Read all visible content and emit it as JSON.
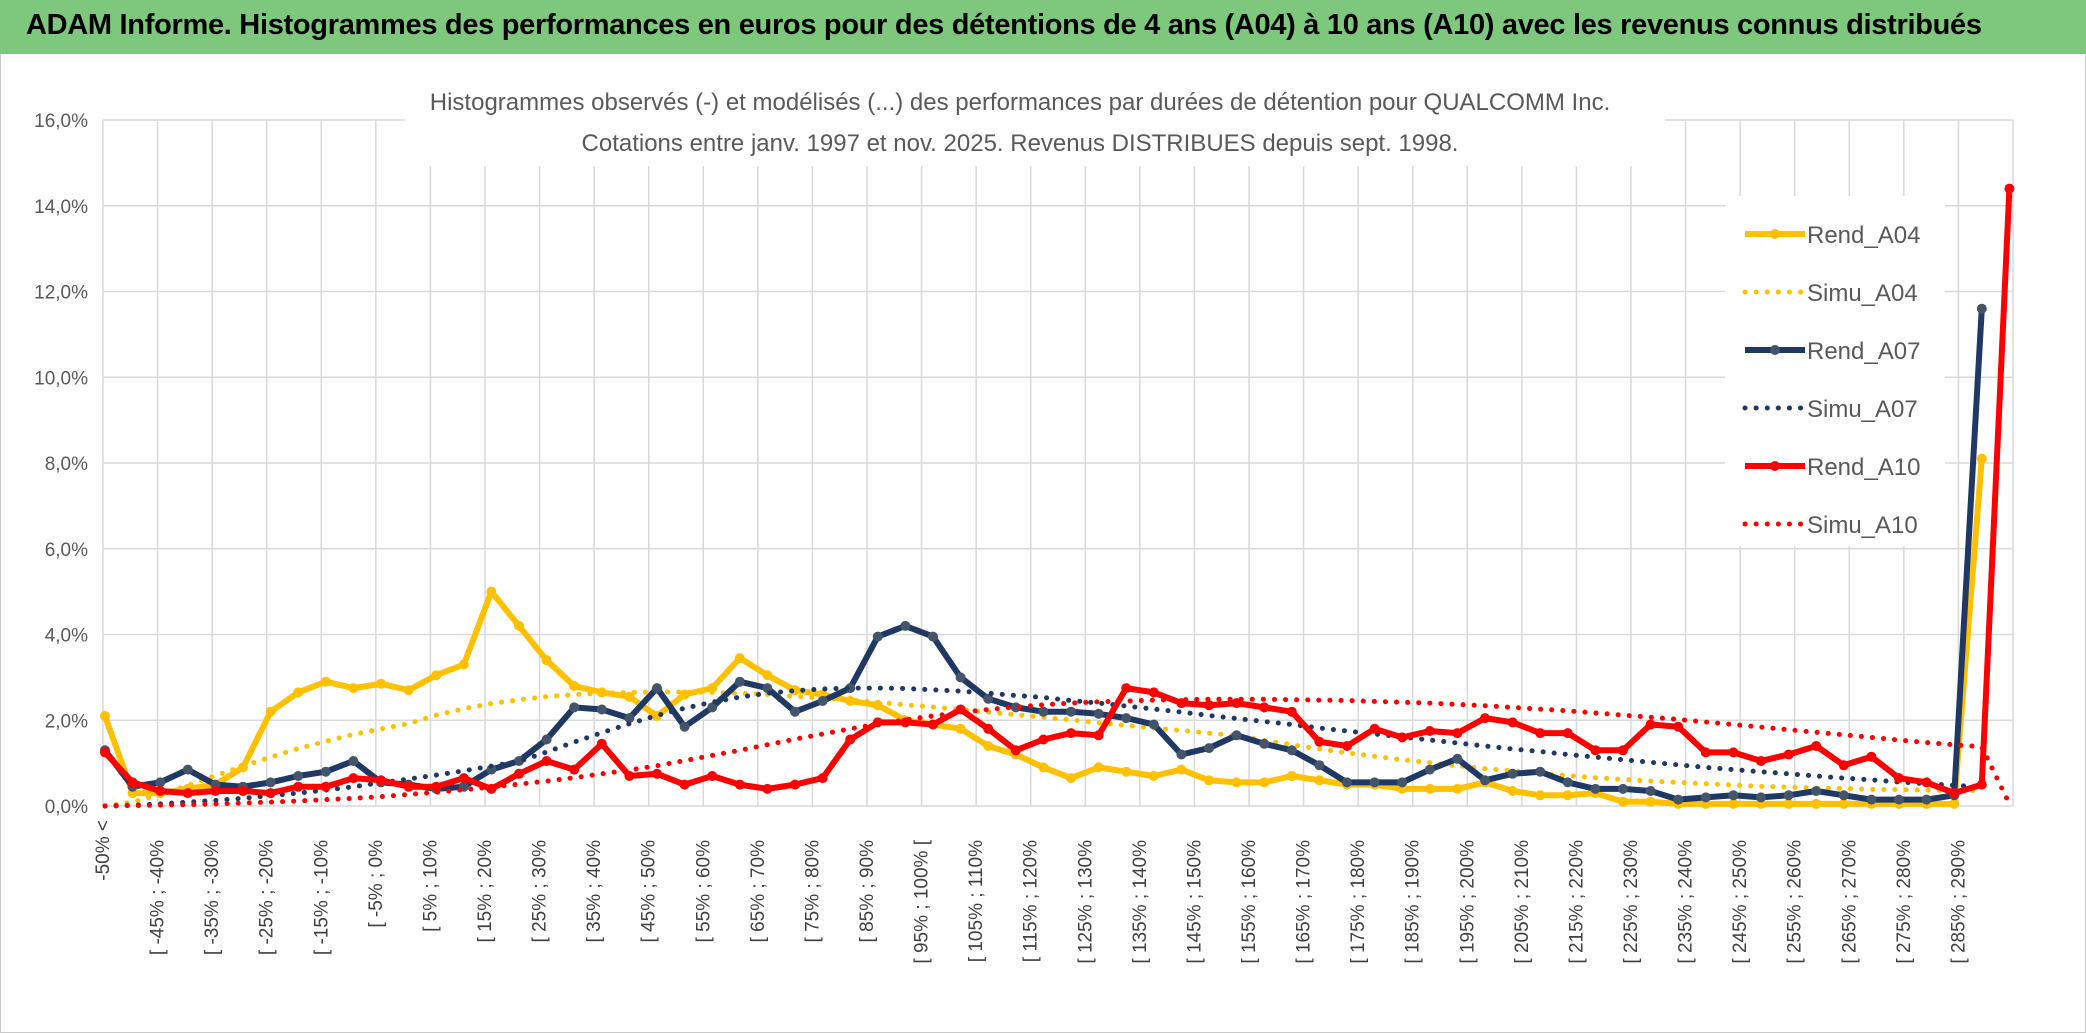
{
  "banner": {
    "title": "ADAM Informe. Histogrammes des performances en euros pour des détentions de 4 ans (A04) à 10 ans (A10) avec les revenus connus distribués"
  },
  "chart_data": {
    "type": "line",
    "title": "Histogrammes observés (-) et modélisés (...) des performances par durées de détention pour QUALCOMM Inc.",
    "subtitle": "Cotations entre janv. 1997 et nov. 2025. Revenus DISTRIBUES depuis sept. 1998.",
    "ylim": [
      0,
      16
    ],
    "yticks": [
      "0,0%",
      "2,0%",
      "4,0%",
      "6,0%",
      "8,0%",
      "10,0%",
      "12,0%",
      "14,0%",
      "16,0%"
    ],
    "grid": true,
    "legend_position": "right",
    "x_labels": [
      "-50% <",
      "[ -45% ; -40%",
      "[ -35% ; -30%",
      "[ -25% ; -20%",
      "[ -15% ; -10%",
      "[ -5% ; 0%",
      "[ 5% ; 10%",
      "[ 15% ; 20%",
      "[ 25% ; 30%",
      "[ 35% ; 40%",
      "[ 45% ; 50%",
      "[ 55% ; 60%",
      "[ 65% ; 70%",
      "[ 75% ; 80%",
      "[ 85% ; 90%",
      "[ 95% ; 100% [",
      "[ 105% ; 110%",
      "[ 115% ; 120%",
      "[ 125% ; 130%",
      "[ 135% ; 140%",
      "[ 145% ; 150%",
      "[ 155% ; 160%",
      "[ 165% ; 170%",
      "[ 175% ; 180%",
      "[ 185% ; 190%",
      "[ 195% ; 200%",
      "[ 205% ; 210%",
      "[ 215% ; 220%",
      "[ 225% ; 230%",
      "[ 235% ; 240%",
      "[ 245% ; 250%",
      "[ 255% ; 260%",
      "[ 265% ; 270%",
      "[ 275% ; 280%",
      "[ 285% ; 290%"
    ],
    "series": [
      {
        "name": "Rend_A04",
        "style": "solid",
        "color": "#ffc000",
        "marker_color": "#ffc000",
        "values": [
          2.1,
          0.3,
          0.3,
          0.4,
          0.5,
          0.9,
          2.2,
          2.65,
          2.9,
          2.75,
          2.85,
          2.7,
          3.05,
          3.3,
          5.0,
          4.2,
          3.4,
          2.8,
          2.65,
          2.55,
          2.1,
          2.6,
          2.75,
          3.45,
          3.05,
          2.7,
          2.6,
          2.45,
          2.35,
          2.0,
          1.9,
          1.8,
          1.4,
          1.2,
          0.9,
          0.65,
          0.9,
          0.8,
          0.7,
          0.85,
          0.6,
          0.55,
          0.55,
          0.7,
          0.6,
          0.5,
          0.5,
          0.4,
          0.4,
          0.4,
          0.55,
          0.35,
          0.25,
          0.25,
          0.3,
          0.1,
          0.1,
          0.05,
          0.05,
          0.05,
          0.05,
          0.05,
          0.05,
          0.05,
          0.05,
          0.05,
          0.05,
          0.05,
          8.1
        ]
      },
      {
        "name": "Simu_A04",
        "style": "dotted",
        "color": "#ffc000",
        "values": [
          0.0,
          0.09,
          0.27,
          0.48,
          0.71,
          0.93,
          1.14,
          1.34,
          1.51,
          1.67,
          1.8,
          1.92,
          2.12,
          2.27,
          2.39,
          2.48,
          2.55,
          2.6,
          2.63,
          2.65,
          2.66,
          2.66,
          2.65,
          2.63,
          2.6,
          2.56,
          2.52,
          2.47,
          2.42,
          2.36,
          2.31,
          2.25,
          2.19,
          2.13,
          2.07,
          2.01,
          1.94,
          1.88,
          1.82,
          1.76,
          1.7,
          1.64,
          1.53,
          1.43,
          1.33,
          1.24,
          1.16,
          1.08,
          1.01,
          0.94,
          0.87,
          0.82,
          0.76,
          0.71,
          0.66,
          0.62,
          0.58,
          0.55,
          0.52,
          0.49,
          0.46,
          0.44,
          0.42,
          0.41,
          0.39,
          0.38,
          0.37,
          0.36,
          0.36
        ]
      },
      {
        "name": "Rend_A07",
        "style": "solid",
        "color": "#1f3864",
        "marker_color": "#44546a",
        "values": [
          1.3,
          0.45,
          0.55,
          0.85,
          0.5,
          0.45,
          0.55,
          0.7,
          0.8,
          1.05,
          0.55,
          0.5,
          0.4,
          0.45,
          0.85,
          1.05,
          1.55,
          2.3,
          2.25,
          2.05,
          2.75,
          1.85,
          2.3,
          2.9,
          2.75,
          2.2,
          2.45,
          2.75,
          3.95,
          4.2,
          3.95,
          3.0,
          2.5,
          2.3,
          2.2,
          2.2,
          2.15,
          2.05,
          1.9,
          1.2,
          1.35,
          1.65,
          1.45,
          1.3,
          0.95,
          0.55,
          0.55,
          0.55,
          0.85,
          1.1,
          0.6,
          0.75,
          0.8,
          0.55,
          0.4,
          0.4,
          0.35,
          0.15,
          0.2,
          0.25,
          0.2,
          0.25,
          0.35,
          0.25,
          0.15,
          0.15,
          0.15,
          0.25,
          11.6
        ]
      },
      {
        "name": "Simu_A07",
        "style": "dotted",
        "color": "#1f3864",
        "values": [
          0.0,
          0.02,
          0.05,
          0.09,
          0.13,
          0.18,
          0.24,
          0.3,
          0.37,
          0.45,
          0.54,
          0.63,
          0.72,
          0.82,
          0.93,
          1.04,
          1.26,
          1.49,
          1.71,
          1.92,
          2.11,
          2.28,
          2.42,
          2.54,
          2.63,
          2.69,
          2.73,
          2.75,
          2.75,
          2.74,
          2.71,
          2.68,
          2.63,
          2.58,
          2.53,
          2.46,
          2.4,
          2.33,
          2.26,
          2.19,
          2.11,
          2.04,
          1.97,
          1.9,
          1.82,
          1.75,
          1.68,
          1.61,
          1.54,
          1.47,
          1.4,
          1.33,
          1.27,
          1.2,
          1.14,
          1.08,
          1.02,
          0.96,
          0.9,
          0.85,
          0.8,
          0.75,
          0.7,
          0.65,
          0.61,
          0.56,
          0.52,
          0.48,
          0.45
        ]
      },
      {
        "name": "Rend_A10",
        "style": "solid",
        "color": "#ff0000",
        "marker_color": "#ff0000",
        "values": [
          1.25,
          0.55,
          0.35,
          0.3,
          0.35,
          0.35,
          0.3,
          0.45,
          0.45,
          0.65,
          0.6,
          0.45,
          0.45,
          0.65,
          0.4,
          0.75,
          1.05,
          0.85,
          1.45,
          0.7,
          0.75,
          0.5,
          0.7,
          0.5,
          0.4,
          0.5,
          0.65,
          1.55,
          1.95,
          1.95,
          1.9,
          2.25,
          1.8,
          1.3,
          1.55,
          1.7,
          1.65,
          2.75,
          2.65,
          2.4,
          2.35,
          2.4,
          2.3,
          2.2,
          1.5,
          1.4,
          1.8,
          1.6,
          1.75,
          1.7,
          2.05,
          1.95,
          1.7,
          1.7,
          1.3,
          1.3,
          1.9,
          1.85,
          1.25,
          1.25,
          1.05,
          1.2,
          1.4,
          0.95,
          1.15,
          0.65,
          0.55,
          0.3,
          0.5,
          14.4
        ]
      },
      {
        "name": "Simu_A10",
        "style": "dotted",
        "color": "#ff0000",
        "values": [
          0.0,
          0.01,
          0.02,
          0.03,
          0.05,
          0.07,
          0.09,
          0.12,
          0.15,
          0.18,
          0.22,
          0.27,
          0.32,
          0.38,
          0.44,
          0.51,
          0.58,
          0.66,
          0.75,
          0.84,
          0.94,
          1.06,
          1.18,
          1.3,
          1.43,
          1.56,
          1.68,
          1.8,
          1.91,
          2.01,
          2.1,
          2.18,
          2.25,
          2.31,
          2.36,
          2.4,
          2.43,
          2.45,
          2.47,
          2.48,
          2.49,
          2.49,
          2.49,
          2.48,
          2.47,
          2.46,
          2.44,
          2.42,
          2.4,
          2.37,
          2.34,
          2.3,
          2.26,
          2.22,
          2.17,
          2.12,
          2.07,
          2.02,
          1.96,
          1.9,
          1.84,
          1.78,
          1.72,
          1.66,
          1.6,
          1.54,
          1.48,
          1.43,
          1.38,
          0.05
        ]
      }
    ]
  }
}
